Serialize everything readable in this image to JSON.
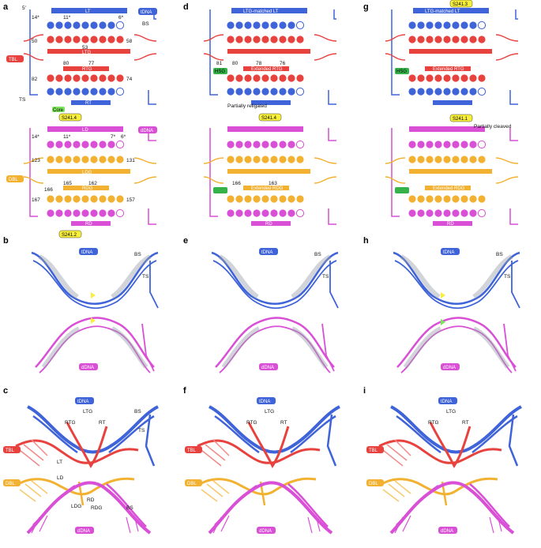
{
  "panels": {
    "a": "a",
    "b": "b",
    "c": "c",
    "d": "d",
    "e": "e",
    "f": "f",
    "g": "g",
    "h": "h",
    "i": "i"
  },
  "colors": {
    "tdna": "#3f63d8",
    "tbl": "#e8423f",
    "ddna": "#d94fd6",
    "dbl": "#f2b131",
    "cleave": "#7ce35a",
    "s241": "#f7ef3c",
    "hsg": "#35b34a"
  },
  "schematic": {
    "a": {
      "top_pill": "LT",
      "tdna": "tDNA",
      "bs": "BS",
      "ts": "TS",
      "five": "5′",
      "three": "3′",
      "pos_top": [
        "14*",
        "11*",
        "6*"
      ],
      "lt_seq": "TAGCCCGGA",
      "ltg_seq": "AUCGGGCCU",
      "ltg_label": "LTG",
      "n50": "50",
      "n53": "53",
      "n58": "58",
      "tbl": "TBL",
      "rtg_nums": [
        "80",
        "77"
      ],
      "rtg_left": "82",
      "rtg_right": "74",
      "rtg_label": "RTG",
      "rtg_seq": "UAGAUCUGU",
      "rt_seq": "ATCTAGACA",
      "rt_label": "RT",
      "bot_nums": [
        "6",
        "7",
        "8",
        "9",
        "10",
        "12",
        "14"
      ],
      "core": "Core",
      "s241": "S241.4",
      "ld_label": "LD",
      "ddna": "dDNA",
      "ld_nums": [
        "14*",
        "11*",
        "7*",
        "6*"
      ],
      "ld_seq": "TCTGATCAT",
      "ldg_left": "123",
      "ldg_right": "131",
      "ldg_seq": "AGACUAGUA",
      "ldg_label": "LDG",
      "dbl": "DBL",
      "rdg_nums": [
        "165",
        "162",
        "166"
      ],
      "rdg_left": "167",
      "rdg_right": "157",
      "rdg_seq": "UGGAUCAGA",
      "rdg_label": "RDG",
      "rd_seq": "ACCTAGTCT",
      "rd_label": "RD",
      "s241b": "S241.2"
    },
    "d": {
      "top_pill": "LTG-matched LT",
      "mid_pill1": "Extended RTG",
      "hsg": "HSG",
      "rtg_nums": [
        "81",
        "80",
        "78",
        "76"
      ],
      "partial": "Partially religated",
      "s241": "S241.4",
      "mid_pill2": "Extended RDG",
      "rdg_nums": [
        "166",
        "163"
      ],
      "bottom_pill": "RD"
    },
    "g": {
      "top_s241": "S241.3",
      "top_pill": "LTG-matched LT",
      "mid_pill1": "Extended RTG",
      "hsg": "HSG",
      "s241b": "S241.1",
      "partial": "Partially cleaved",
      "mid_pill2": "Extended RDG",
      "bottom_pill": "RD"
    }
  },
  "density": {
    "tdna": "tDNA",
    "ddna": "dDNA",
    "bs": "BS",
    "ts": "TS",
    "five": "5′",
    "three": "3′"
  },
  "model": {
    "tdna": "tDNA",
    "ddna": "dDNA",
    "tbl": "TBL",
    "dbl": "DBL",
    "ltg": "LTG",
    "rtg": "RTG",
    "rt": "RT",
    "lt": "LT",
    "ld": "LD",
    "rd": "RD",
    "ldg": "LDG",
    "rdg": "RDG",
    "bs": "BS",
    "ts": "TS",
    "five": "5′",
    "three": "3′"
  }
}
